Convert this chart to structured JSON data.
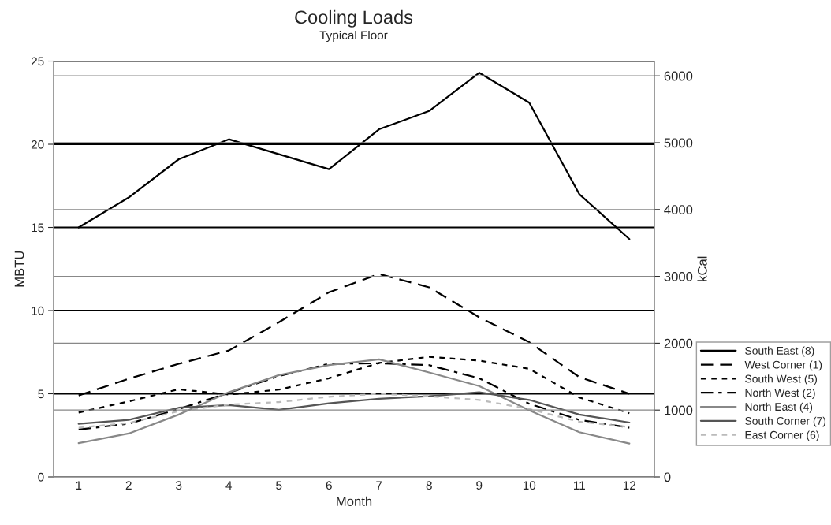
{
  "chart_data": {
    "type": "line",
    "title": "Cooling Loads",
    "subtitle": "Typical Floor",
    "xlabel": "Month",
    "ylabel": "MBTU",
    "y2label": "kCal",
    "categories": [
      "1",
      "2",
      "3",
      "4",
      "5",
      "6",
      "7",
      "8",
      "9",
      "10",
      "11",
      "12"
    ],
    "ylim": [
      0,
      25
    ],
    "yticks": [
      0,
      5,
      10,
      15,
      20,
      25
    ],
    "y2lim": [
      0,
      6220
    ],
    "y2ticks": [
      0,
      1000,
      2000,
      3000,
      4000,
      5000,
      6000
    ],
    "grid": "y",
    "legend": "right",
    "marker": "none",
    "series": [
      {
        "name": "South East (8)",
        "color": "#000000",
        "line_style": "solid",
        "values": [
          15.0,
          16.8,
          19.1,
          20.3,
          19.4,
          18.5,
          20.9,
          22.0,
          24.3,
          22.5,
          17.0,
          14.3
        ]
      },
      {
        "name": "West Corner (1)",
        "color": "#000000",
        "line_style": "dashed",
        "values": [
          4.9,
          5.9,
          6.8,
          7.6,
          9.3,
          11.1,
          12.2,
          11.4,
          9.6,
          8.1,
          6.0,
          5.0
        ]
      },
      {
        "name": "South West (5)",
        "color": "#000000",
        "line_style": "dotted",
        "values": [
          3.87,
          4.54,
          5.27,
          4.95,
          5.25,
          5.93,
          6.85,
          7.22,
          6.99,
          6.5,
          4.78,
          3.83
        ]
      },
      {
        "name": "North West (2)",
        "color": "#000000",
        "line_style": "dashdot",
        "values": [
          2.85,
          3.2,
          4.08,
          5.06,
          6.06,
          6.8,
          6.83,
          6.72,
          5.93,
          4.4,
          3.43,
          2.96
        ]
      },
      {
        "name": "North East (4)",
        "color": "#888888",
        "line_style": "solid",
        "values": [
          2.03,
          2.61,
          3.75,
          5.09,
          6.12,
          6.72,
          7.07,
          6.28,
          5.46,
          4.0,
          2.69,
          2.01
        ]
      },
      {
        "name": "South Corner (7)",
        "color": "#555555",
        "line_style": "solid",
        "values": [
          3.19,
          3.43,
          4.16,
          4.32,
          4.03,
          4.43,
          4.7,
          4.85,
          5.09,
          4.63,
          3.75,
          3.27
        ]
      },
      {
        "name": "East Corner (6)",
        "color": "#bbbbbb",
        "line_style": "dotted",
        "values": [
          2.96,
          3.24,
          3.95,
          4.35,
          4.5,
          4.82,
          5.0,
          4.85,
          4.63,
          4.08,
          3.32,
          3.0
        ]
      }
    ]
  }
}
